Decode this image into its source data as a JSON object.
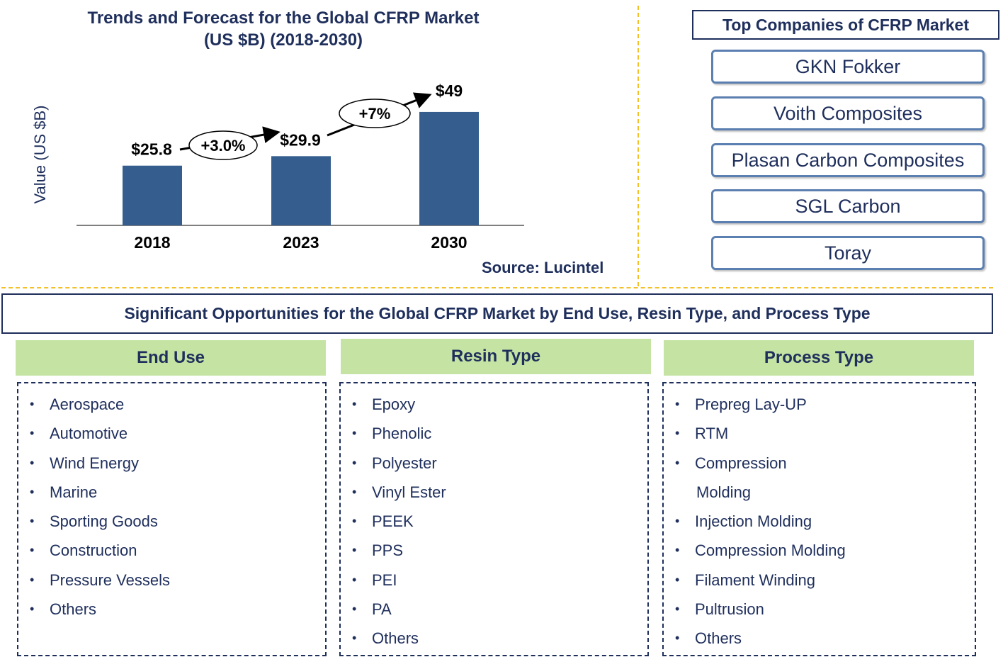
{
  "chart_data": {
    "type": "bar",
    "title": "Trends and Forecast for the Global CFRP Market",
    "subtitle": "(US $B) (2018-2030)",
    "ylabel": "Value (US $B)",
    "categories": [
      "2018",
      "2023",
      "2030"
    ],
    "values": [
      25.8,
      29.9,
      49
    ],
    "value_labels": [
      "$25.8",
      "$29.9",
      "$49"
    ],
    "ylim": [
      0,
      60
    ],
    "bar_color": "#355e8e",
    "grid": false,
    "growth_annotations": [
      {
        "from": "2018",
        "to": "2023",
        "label": "+3.0%"
      },
      {
        "from": "2023",
        "to": "2030",
        "label": "+7%"
      }
    ]
  },
  "source": "Source: Lucintel",
  "top_companies": {
    "title": "Top Companies of CFRP Market",
    "items": [
      "GKN Fokker",
      "Voith Composites",
      "Plasan Carbon Composites",
      "SGL Carbon",
      "Toray"
    ]
  },
  "opportunities": {
    "title": "Significant Opportunities for the Global CFRP Market  by End Use, Resin Type, and Process Type",
    "columns": [
      {
        "heading": "End Use",
        "items": [
          "Aerospace",
          "Automotive",
          "Wind Energy",
          "Marine",
          "Sporting Goods",
          "Construction",
          "Pressure Vessels",
          "Others"
        ]
      },
      {
        "heading": "Resin Type",
        "items": [
          "Epoxy",
          "Phenolic",
          "Polyester",
          "Vinyl Ester",
          "PEEK",
          "PPS",
          "PEI",
          "PA",
          "Others"
        ]
      },
      {
        "heading": "Process Type",
        "items": [
          "Prepreg  Lay-UP",
          "RTM",
          "Compression",
          "Molding",
          "Injection Molding",
          "Compression Molding",
          "Filament Winding",
          "Pultrusion",
          "Others"
        ]
      }
    ]
  },
  "colors": {
    "accent": "#1f2f5c",
    "header_green": "#c5e4a4",
    "divider": "#f2c029",
    "company_border": "#5b7fb0"
  }
}
